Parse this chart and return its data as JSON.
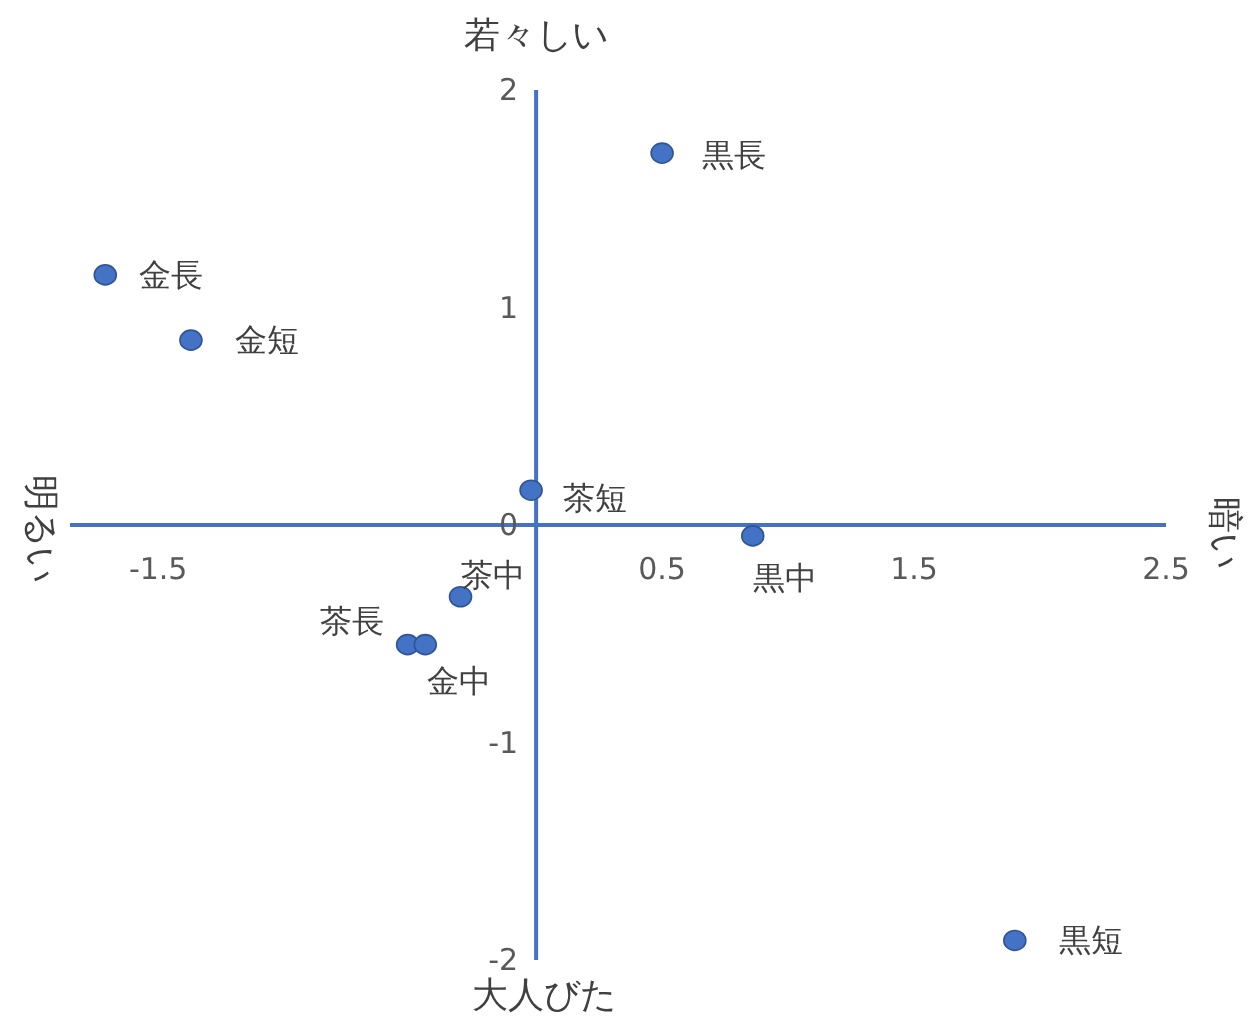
{
  "chart_data": {
    "type": "scatter",
    "x": [
      0.5,
      -1.71,
      -1.37,
      -0.02,
      0.86,
      -0.3,
      -0.51,
      -0.44,
      1.9
    ],
    "values": [
      1.71,
      1.15,
      0.85,
      0.16,
      -0.05,
      -0.33,
      -0.55,
      -0.55,
      -1.91
    ],
    "color": "#4472c4",
    "marker": "circle",
    "xlim": [
      -1.85,
      2.5
    ],
    "ylim": [
      -2,
      2
    ],
    "xticks": [
      -1.5,
      0.5,
      1.5,
      2.5
    ],
    "yticks": [
      -2,
      -1,
      0,
      1,
      2
    ],
    "annotations": [
      "若々しい",
      "大人びた",
      "明るい",
      "暗い",
      {
        "text": "黒長",
        "x": 0.5,
        "y": 1.71
      },
      {
        "text": "金長",
        "x": -1.71,
        "y": 1.15
      },
      {
        "text": "金短",
        "x": -1.37,
        "y": 0.85
      },
      {
        "text": "茶短",
        "x": -0.02,
        "y": 0.16
      },
      {
        "text": "黒中",
        "x": 0.86,
        "y": -0.05
      },
      {
        "text": "茶中",
        "x": -0.3,
        "y": -0.33
      },
      {
        "text": "茶長",
        "x": -0.51,
        "y": -0.55
      },
      {
        "text": "金中",
        "x": -0.44,
        "y": -0.55
      },
      {
        "text": "黒短",
        "x": 1.9,
        "y": -1.91
      }
    ]
  }
}
